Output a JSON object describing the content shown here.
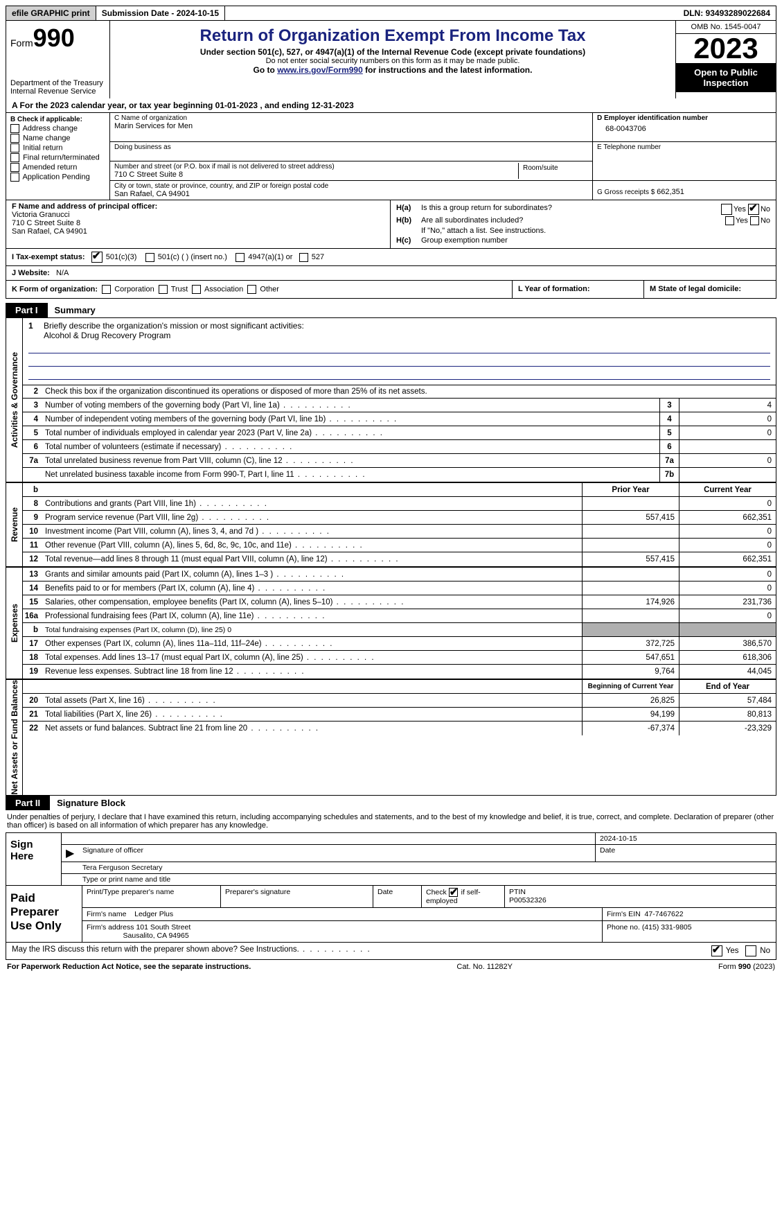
{
  "topbar": {
    "efile": "efile GRAPHIC print",
    "submission": "Submission Date - 2024-10-15",
    "dln": "DLN: 93493289022684"
  },
  "header": {
    "form_label": "Form",
    "form_num": "990",
    "dept1": "Department of the Treasury",
    "dept2": "Internal Revenue Service",
    "title": "Return of Organization Exempt From Income Tax",
    "sub1": "Under section 501(c), 527, or 4947(a)(1) of the Internal Revenue Code (except private foundations)",
    "sub2": "Do not enter social security numbers on this form as it may be made public.",
    "sub3_pre": "Go to ",
    "sub3_link": "www.irs.gov/Form990",
    "sub3_post": " for instructions and the latest information.",
    "omb": "OMB No. 1545-0047",
    "year": "2023",
    "open": "Open to Public Inspection"
  },
  "section_a": {
    "text": "A For the 2023 calendar year, or tax year beginning 01-01-2023   , and ending 12-31-2023"
  },
  "col_b": {
    "label": "B Check if applicable:",
    "opts": [
      "Address change",
      "Name change",
      "Initial return",
      "Final return/terminated",
      "Amended return",
      "Application Pending"
    ]
  },
  "col_c": {
    "name_hint": "C Name of organization",
    "name": "Marin Services for Men",
    "dba_hint": "Doing business as",
    "addr_hint": "Number and street (or P.O. box if mail is not delivered to street address)",
    "room_hint": "Room/suite",
    "addr": "710 C Street Suite 8",
    "city_hint": "City or town, state or province, country, and ZIP or foreign postal code",
    "city": "San Rafael, CA  94901"
  },
  "col_d": {
    "ein_hint": "D Employer identification number",
    "ein": "68-0043706",
    "tel_hint": "E Telephone number",
    "gross_hint": "G Gross receipts $ ",
    "gross": "662,351"
  },
  "officer": {
    "hint": "F  Name and address of principal officer:",
    "name": "Victoria Granucci",
    "addr1": "710 C Street Suite 8",
    "addr2": "San Rafael, CA  94901"
  },
  "ha": {
    "a_label": "H(a)",
    "a_text": "Is this a group return for subordinates?",
    "b_label": "H(b)",
    "b_text": "Are all subordinates included?",
    "b_note": "If \"No,\" attach a list. See instructions.",
    "c_label": "H(c)",
    "c_text": "Group exemption number",
    "yes": "Yes",
    "no": "No"
  },
  "line_i": {
    "label": "I   Tax-exempt status:",
    "o1": "501(c)(3)",
    "o2": "501(c) (  ) (insert no.)",
    "o3": "4947(a)(1) or",
    "o4": "527"
  },
  "line_j": {
    "label": "J   Website:",
    "val": "N/A"
  },
  "line_k": {
    "label": "K Form of organization:",
    "opts": [
      "Corporation",
      "Trust",
      "Association",
      "Other"
    ],
    "l": "L Year of formation:",
    "m": "M State of legal domicile:"
  },
  "part1": {
    "tab": "Part I",
    "title": "Summary"
  },
  "gov": {
    "side": "Activities & Governance",
    "l1a": "Briefly describe the organization's mission or most significant activities:",
    "l1b": "Alcohol & Drug Recovery Program",
    "l2": "Check this box        if the organization discontinued its operations or disposed of more than 25% of its net assets.",
    "rows": [
      {
        "n": "3",
        "d": "Number of voting members of the governing body (Part VI, line 1a)",
        "b": "3",
        "v": "4"
      },
      {
        "n": "4",
        "d": "Number of independent voting members of the governing body (Part VI, line 1b)",
        "b": "4",
        "v": "0"
      },
      {
        "n": "5",
        "d": "Total number of individuals employed in calendar year 2023 (Part V, line 2a)",
        "b": "5",
        "v": "0"
      },
      {
        "n": "6",
        "d": "Total number of volunteers (estimate if necessary)",
        "b": "6",
        "v": ""
      },
      {
        "n": "7a",
        "d": "Total unrelated business revenue from Part VIII, column (C), line 12",
        "b": "7a",
        "v": "0"
      },
      {
        "n": "",
        "d": "Net unrelated business taxable income from Form 990-T, Part I, line 11",
        "b": "7b",
        "v": ""
      }
    ]
  },
  "rev": {
    "side": "Revenue",
    "hdr_b": "b",
    "hdr_prior": "Prior Year",
    "hdr_curr": "Current Year",
    "rows": [
      {
        "n": "8",
        "d": "Contributions and grants (Part VIII, line 1h)",
        "p": "",
        "c": "0"
      },
      {
        "n": "9",
        "d": "Program service revenue (Part VIII, line 2g)",
        "p": "557,415",
        "c": "662,351"
      },
      {
        "n": "10",
        "d": "Investment income (Part VIII, column (A), lines 3, 4, and 7d )",
        "p": "",
        "c": "0"
      },
      {
        "n": "11",
        "d": "Other revenue (Part VIII, column (A), lines 5, 6d, 8c, 9c, 10c, and 11e)",
        "p": "",
        "c": "0"
      },
      {
        "n": "12",
        "d": "Total revenue—add lines 8 through 11 (must equal Part VIII, column (A), line 12)",
        "p": "557,415",
        "c": "662,351"
      }
    ]
  },
  "exp": {
    "side": "Expenses",
    "rows": [
      {
        "n": "13",
        "d": "Grants and similar amounts paid (Part IX, column (A), lines 1–3 )",
        "p": "",
        "c": "0"
      },
      {
        "n": "14",
        "d": "Benefits paid to or for members (Part IX, column (A), line 4)",
        "p": "",
        "c": "0"
      },
      {
        "n": "15",
        "d": "Salaries, other compensation, employee benefits (Part IX, column (A), lines 5–10)",
        "p": "174,926",
        "c": "231,736"
      },
      {
        "n": "16a",
        "d": "Professional fundraising fees (Part IX, column (A), line 11e)",
        "p": "",
        "c": "0"
      },
      {
        "n": "b",
        "d": "Total fundraising expenses (Part IX, column (D), line 25) 0",
        "shaded": true
      },
      {
        "n": "17",
        "d": "Other expenses (Part IX, column (A), lines 11a–11d, 11f–24e)",
        "p": "372,725",
        "c": "386,570"
      },
      {
        "n": "18",
        "d": "Total expenses. Add lines 13–17 (must equal Part IX, column (A), line 25)",
        "p": "547,651",
        "c": "618,306"
      },
      {
        "n": "19",
        "d": "Revenue less expenses. Subtract line 18 from line 12",
        "p": "9,764",
        "c": "44,045"
      }
    ]
  },
  "net": {
    "side": "Net Assets or Fund Balances",
    "hdr_beg": "Beginning of Current Year",
    "hdr_end": "End of Year",
    "rows": [
      {
        "n": "20",
        "d": "Total assets (Part X, line 16)",
        "p": "26,825",
        "c": "57,484"
      },
      {
        "n": "21",
        "d": "Total liabilities (Part X, line 26)",
        "p": "94,199",
        "c": "80,813"
      },
      {
        "n": "22",
        "d": "Net assets or fund balances. Subtract line 21 from line 20",
        "p": "-67,374",
        "c": "-23,329"
      }
    ]
  },
  "part2": {
    "tab": "Part II",
    "title": "Signature Block"
  },
  "sig": {
    "intro": "Under penalties of perjury, I declare that I have examined this return, including accompanying schedules and statements, and to the best of my knowledge and belief, it is true, correct, and complete. Declaration of preparer (other than officer) is based on all information of which preparer has any knowledge.",
    "here": "Sign Here",
    "date": "2024-10-15",
    "sig_hint": "Signature of officer",
    "date_hint": "Date",
    "name": "Tera Ferguson Secretary",
    "name_hint": "Type or print name and title"
  },
  "paid": {
    "label": "Paid Preparer Use Only",
    "h1": "Print/Type preparer's name",
    "h2": "Preparer's signature",
    "h3": "Date",
    "h4_pre": "Check",
    "h4_post": "if self-employed",
    "h5": "PTIN",
    "ptin": "P00532326",
    "firm_label": "Firm's name",
    "firm": "Ledger Plus",
    "ein_label": "Firm's EIN",
    "ein": "47-7467622",
    "addr_label": "Firm's address",
    "addr1": "101 South Street",
    "addr2": "Sausalito, CA  94965",
    "phone_label": "Phone no.",
    "phone": "(415) 331-9805"
  },
  "may": {
    "text": "May the IRS discuss this return with the preparer shown above? See Instructions.",
    "yes": "Yes",
    "no": "No"
  },
  "footer": {
    "l": "For Paperwork Reduction Act Notice, see the separate instructions.",
    "m": "Cat. No. 11282Y",
    "r": "Form 990 (2023)"
  },
  "colors": {
    "navy": "#1a237e",
    "black": "#000000",
    "grey": "#b0b0b0",
    "btn": "#d0d0d0"
  }
}
